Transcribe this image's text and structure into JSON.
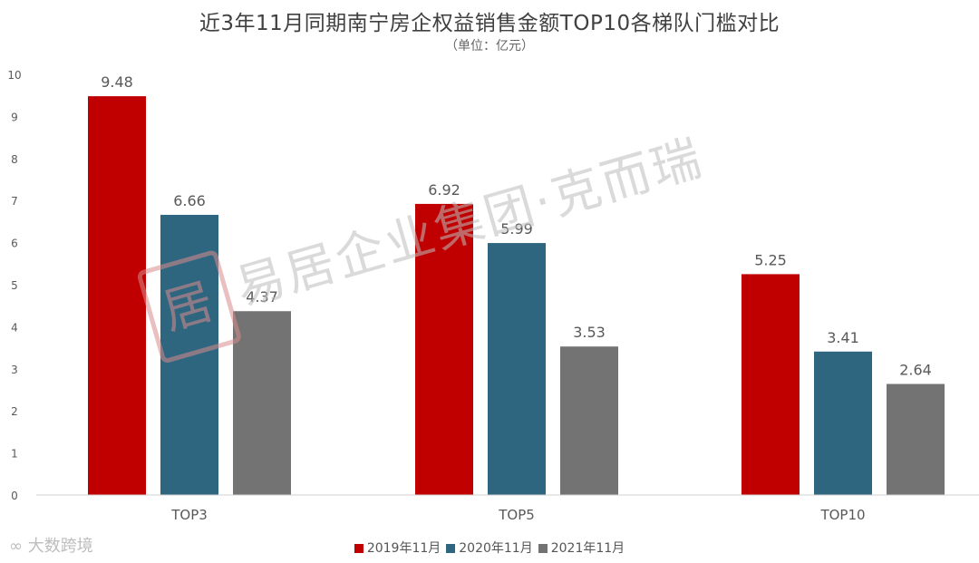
{
  "header": {
    "title": "近3年11月同期南宁房企权益销售金额TOP10各梯队门槛对比",
    "subtitle": "（单位：亿元）"
  },
  "watermark": {
    "seal_char": "居",
    "text": "易居企业集团·克而瑞"
  },
  "corner_mark": {
    "text": "大数跨境"
  },
  "colors": {
    "series_2019": "#c00000",
    "series_2020": "#2e6680",
    "series_2021": "#737373",
    "axis": "#d0d0d0",
    "tick_text": "#595959",
    "label_text": "#595959"
  },
  "chart_data": {
    "type": "bar",
    "title": "近3年11月同期南宁房企权益销售金额TOP10各梯队门槛对比",
    "subtitle": "（单位：亿元）",
    "categories": [
      "TOP3",
      "TOP5",
      "TOP10"
    ],
    "series": [
      {
        "name": "2019年11月",
        "values": [
          9.48,
          6.92,
          5.25
        ]
      },
      {
        "name": "2020年11月",
        "values": [
          6.66,
          5.99,
          3.41
        ]
      },
      {
        "name": "2021年11月",
        "values": [
          4.37,
          3.53,
          2.64
        ]
      }
    ],
    "y_ticks": [
      "0",
      "1",
      "2",
      "3",
      "4",
      "5",
      "6",
      "7",
      "8",
      "9",
      "10"
    ],
    "ylim": [
      0,
      10
    ],
    "grid": false,
    "legend_position": "bottom"
  }
}
